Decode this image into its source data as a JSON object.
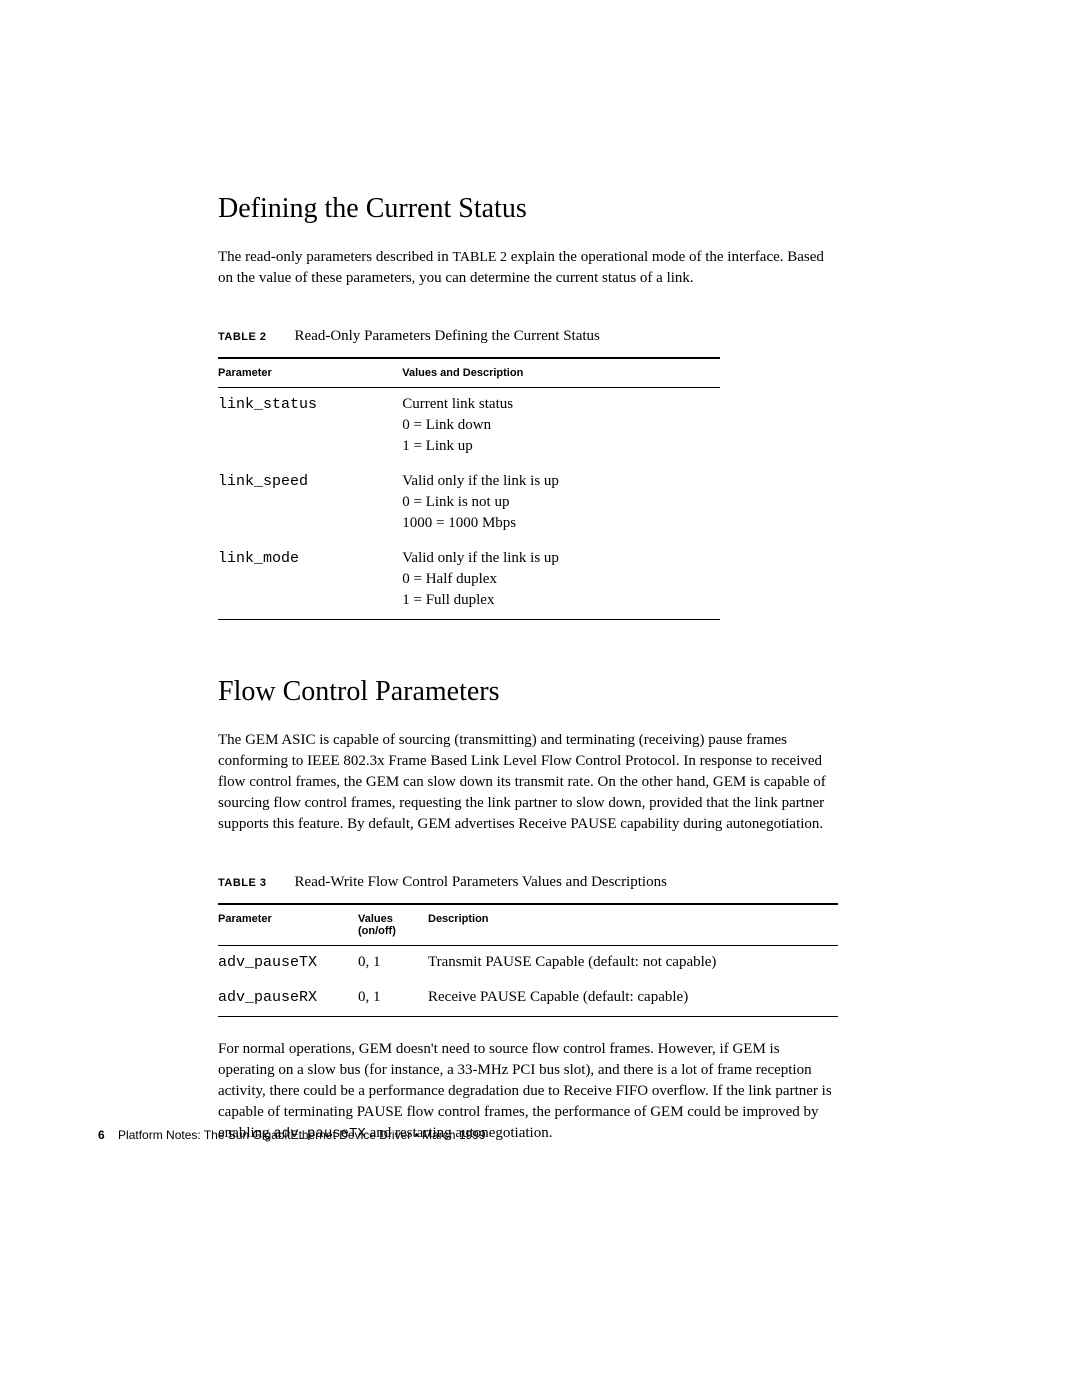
{
  "section1": {
    "heading": "Defining the Current Status",
    "intro_part1": "The read-only parameters described in ",
    "intro_table_ref": "TABLE 2",
    "intro_part2": " explain the operational mode of the interface. Based on the value of these parameters, you can determine the current status of a link.",
    "table": {
      "label": "TABLE 2",
      "title": "Read-Only Parameters Defining the Current Status",
      "headers": {
        "col1": "Parameter",
        "col2": "Values and Description"
      },
      "rows": [
        {
          "param": "link_status",
          "line1": "Current link status",
          "line2": "0 = Link down",
          "line3": "1 = Link up"
        },
        {
          "param": "link_speed",
          "line1": "Valid only if the link is up",
          "line2": "0 = Link is not up",
          "line3": "1000 = 1000 Mbps"
        },
        {
          "param": "link_mode",
          "line1": "Valid only if the link is up",
          "line2": "0 = Half duplex",
          "line3": "1 = Full duplex"
        }
      ]
    }
  },
  "section2": {
    "heading": "Flow Control Parameters",
    "intro": "The GEM ASIC is capable of sourcing (transmitting) and terminating (receiving) pause frames conforming to IEEE 802.3x Frame Based Link Level Flow Control Protocol. In response to received flow control frames, the GEM can slow down its transmit rate. On the other hand, GEM is capable of sourcing flow control frames, requesting the link partner to slow down, provided that the link partner supports this feature. By default, GEM advertises Receive PAUSE capability during autonegotiation.",
    "table": {
      "label": "TABLE 3",
      "title": "Read-Write Flow Control Parameters Values and Descriptions",
      "headers": {
        "col1": "Parameter",
        "col2_line1": "Values",
        "col2_line2": "(on/off)",
        "col3": "Description"
      },
      "rows": [
        {
          "param": "adv_pauseTX",
          "values": "0, 1",
          "desc": "Transmit PAUSE Capable (default: not capable)"
        },
        {
          "param": "adv_pauseRX",
          "values": "0, 1",
          "desc": "Receive PAUSE Capable (default: capable)"
        }
      ]
    },
    "outro_part1": "For normal operations, GEM doesn't need to source flow control frames. However, if GEM is operating on a slow bus (for instance, a 33-MHz PCI bus slot), and there is a lot of frame reception activity, there could be a performance degradation due to Receive FIFO overflow. If the link partner is capable of terminating PAUSE flow control frames, the performance of GEM could be improved by enabling ",
    "outro_code": "adv_pauseTX",
    "outro_part2": "  and restarting autonegotiation."
  },
  "footer": {
    "page_number": "6",
    "text": "Platform Notes: The Sun GigabitEthernet Device Driver  •  March 1999"
  }
}
